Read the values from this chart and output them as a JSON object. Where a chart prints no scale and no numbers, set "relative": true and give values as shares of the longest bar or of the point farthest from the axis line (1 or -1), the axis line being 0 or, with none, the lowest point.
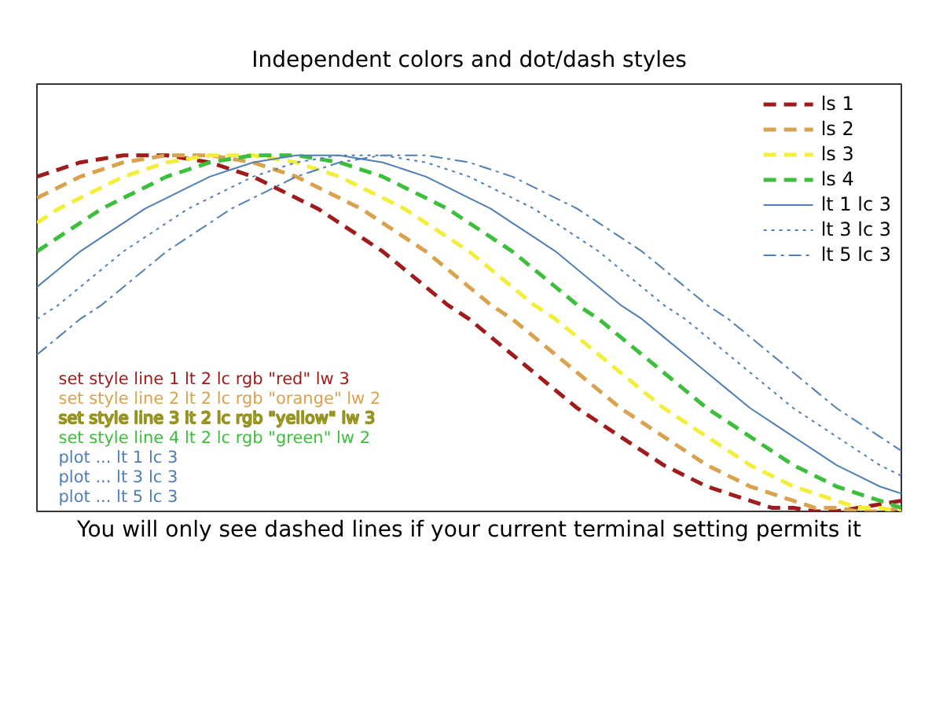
{
  "chart_data": {
    "type": "line",
    "title": "Independent colors and dot/dash styles",
    "xlabel": "You will only see dashed lines if your current terminal setting permits it",
    "relative": true,
    "legend": "top right",
    "categories": [
      null,
      null,
      null,
      null,
      null,
      null,
      null,
      null,
      null,
      null,
      null,
      null,
      null,
      null,
      null,
      null,
      null,
      null,
      null,
      null,
      null,
      null,
      null,
      null,
      null,
      null,
      null,
      null,
      null,
      null,
      null,
      null,
      null,
      null,
      null,
      null,
      null,
      null,
      null,
      null,
      null
    ],
    "series": [
      {
        "name": "ls 1",
        "color": "#a01c1c",
        "line_style": "dashed",
        "values": [
          0.94,
          0.96,
          0.98,
          0.99,
          1,
          1,
          1,
          0.99,
          0.98,
          0.96,
          0.94,
          0.91,
          0.88,
          0.85,
          0.81,
          0.77,
          0.73,
          0.68,
          0.63,
          0.58,
          0.54,
          0.49,
          0.44,
          0.39,
          0.34,
          0.29,
          0.25,
          0.21,
          0.17,
          0.13,
          0.1,
          0.07,
          0.05,
          0.03,
          0.01,
          0.01,
          0,
          0,
          0.01,
          0.02,
          0.03
        ]
      },
      {
        "name": "ls 2",
        "color": "#d8a24e",
        "line_style": "dashed",
        "values": [
          0.88,
          0.91,
          0.94,
          0.96,
          0.98,
          0.99,
          1,
          1,
          1,
          0.99,
          0.98,
          0.96,
          0.94,
          0.91,
          0.88,
          0.85,
          0.81,
          0.77,
          0.73,
          0.68,
          0.63,
          0.58,
          0.54,
          0.49,
          0.44,
          0.39,
          0.34,
          0.29,
          0.25,
          0.21,
          0.17,
          0.13,
          0.1,
          0.07,
          0.05,
          0.03,
          0.01,
          0.01,
          0,
          0,
          0.01
        ]
      },
      {
        "name": "ls 3",
        "color": "#f2ee3a",
        "line_style": "dashed",
        "values": [
          0.81,
          0.85,
          0.88,
          0.91,
          0.94,
          0.96,
          0.98,
          0.99,
          1,
          1,
          1,
          0.99,
          0.98,
          0.96,
          0.94,
          0.91,
          0.88,
          0.85,
          0.81,
          0.77,
          0.73,
          0.68,
          0.63,
          0.58,
          0.54,
          0.49,
          0.44,
          0.39,
          0.34,
          0.29,
          0.25,
          0.21,
          0.17,
          0.13,
          0.1,
          0.07,
          0.05,
          0.03,
          0.01,
          0.01,
          0
        ]
      },
      {
        "name": "ls 4",
        "color": "#3dbf3d",
        "line_style": "dashed",
        "values": [
          0.73,
          0.77,
          0.81,
          0.85,
          0.88,
          0.91,
          0.94,
          0.96,
          0.98,
          0.99,
          1,
          1,
          1,
          0.99,
          0.98,
          0.96,
          0.94,
          0.91,
          0.88,
          0.85,
          0.81,
          0.77,
          0.73,
          0.68,
          0.63,
          0.58,
          0.54,
          0.49,
          0.44,
          0.39,
          0.34,
          0.29,
          0.25,
          0.21,
          0.17,
          0.13,
          0.1,
          0.07,
          0.05,
          0.03,
          0.01
        ]
      },
      {
        "name": "lt 1 lc 3",
        "color": "#4f7fb5",
        "line_style": "solid",
        "values": [
          0.63,
          0.68,
          0.73,
          0.77,
          0.81,
          0.85,
          0.88,
          0.91,
          0.94,
          0.96,
          0.98,
          0.99,
          1,
          1,
          1,
          0.99,
          0.98,
          0.96,
          0.94,
          0.91,
          0.88,
          0.85,
          0.81,
          0.77,
          0.73,
          0.68,
          0.63,
          0.58,
          0.54,
          0.49,
          0.44,
          0.39,
          0.34,
          0.29,
          0.25,
          0.21,
          0.17,
          0.13,
          0.1,
          0.07,
          0.05
        ]
      },
      {
        "name": "lt 3 lc 3",
        "color": "#4f7fb5",
        "line_style": "dotted",
        "values": [
          0.54,
          0.58,
          0.63,
          0.68,
          0.73,
          0.77,
          0.81,
          0.85,
          0.88,
          0.91,
          0.94,
          0.96,
          0.98,
          0.99,
          1,
          1,
          1,
          0.99,
          0.98,
          0.96,
          0.94,
          0.91,
          0.88,
          0.85,
          0.81,
          0.77,
          0.73,
          0.68,
          0.63,
          0.58,
          0.54,
          0.49,
          0.44,
          0.39,
          0.34,
          0.29,
          0.25,
          0.21,
          0.17,
          0.13,
          0.1
        ]
      },
      {
        "name": "lt 5 lc 3",
        "color": "#4f7fb5",
        "line_style": "dashdot",
        "values": [
          0.44,
          0.49,
          0.54,
          0.58,
          0.63,
          0.68,
          0.73,
          0.77,
          0.81,
          0.85,
          0.88,
          0.91,
          0.94,
          0.96,
          0.98,
          0.99,
          1,
          1,
          1,
          0.99,
          0.98,
          0.96,
          0.94,
          0.91,
          0.88,
          0.85,
          0.81,
          0.77,
          0.73,
          0.68,
          0.63,
          0.58,
          0.54,
          0.49,
          0.44,
          0.39,
          0.34,
          0.29,
          0.25,
          0.21,
          0.17
        ]
      }
    ],
    "annotations": [
      "set style line 1 lt 2 lc rgb \"red\" lw 3",
      "set style line 2 lt 2 lc rgb \"orange\" lw 2",
      "set style line 3 lt 2 lc rgb \"yellow\" lw 3",
      "set style line 4 lt 2 lc rgb \"green\" lw 2",
      "plot ... lt 1 lc 3",
      "plot ... lt 3 lc 3",
      "plot ... lt 5 lc 3"
    ]
  }
}
